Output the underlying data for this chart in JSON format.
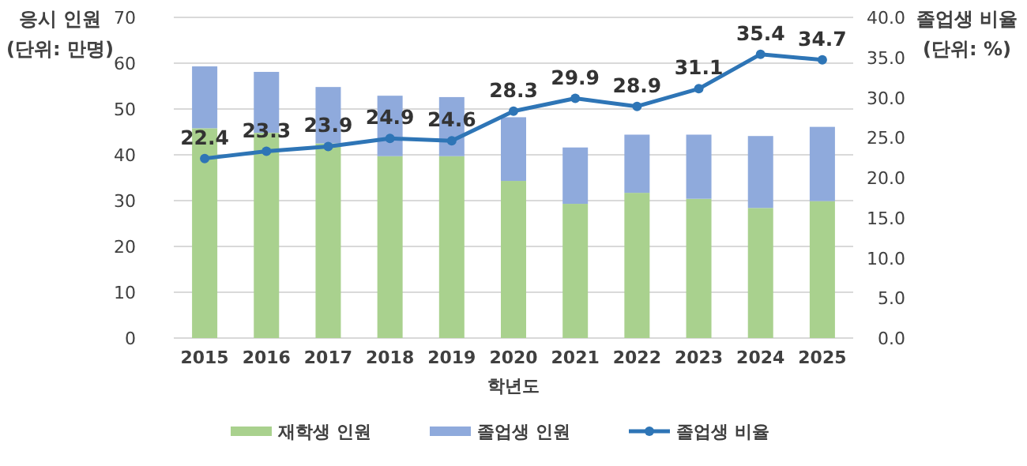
{
  "chart_data": {
    "type": "bar",
    "stacked": true,
    "xlabel": "학년도",
    "ylabel": "응시 인원 (단위: 만명)",
    "y2label": "졸업생 비율 (단위: %)",
    "categories": [
      "2015",
      "2016",
      "2017",
      "2018",
      "2019",
      "2020",
      "2021",
      "2022",
      "2023",
      "2024",
      "2025"
    ],
    "series": [
      {
        "name": "재학생 인원",
        "color": "#a9d18e",
        "values": [
          45.8,
          44.8,
          42.5,
          39.7,
          39.7,
          34.3,
          29.3,
          31.7,
          30.4,
          28.4,
          29.9
        ]
      },
      {
        "name": "졸업생 인원",
        "color": "#8faadc",
        "values": [
          13.5,
          13.3,
          12.3,
          13.2,
          12.9,
          13.9,
          12.3,
          12.7,
          14.0,
          15.7,
          16.2
        ]
      },
      {
        "name": "졸업생 비율",
        "type": "line",
        "axis": "y2",
        "color": "#2e75b6",
        "marker": "circle",
        "data_labels": true,
        "values": [
          22.4,
          23.3,
          23.9,
          24.9,
          24.6,
          28.3,
          29.9,
          28.9,
          31.1,
          35.4,
          34.7
        ]
      }
    ],
    "ylim": [
      0,
      70
    ],
    "yticks": [
      0,
      10,
      20,
      30,
      40,
      50,
      60,
      70
    ],
    "y2lim": [
      0,
      40
    ],
    "y2ticks": [
      {
        "value": 0,
        "label": "0.0"
      },
      {
        "value": 5,
        "label": "5.0"
      },
      {
        "value": 10,
        "label": "10.0"
      },
      {
        "value": 15,
        "label": "15.0"
      },
      {
        "value": 20,
        "label": "20.0"
      },
      {
        "value": 25,
        "label": "25.0"
      },
      {
        "value": 30,
        "label": "30.0"
      },
      {
        "value": 35,
        "label": "35.0"
      },
      {
        "value": 40,
        "label": "40.0"
      }
    ],
    "grid": "y",
    "legend": "bottom"
  }
}
